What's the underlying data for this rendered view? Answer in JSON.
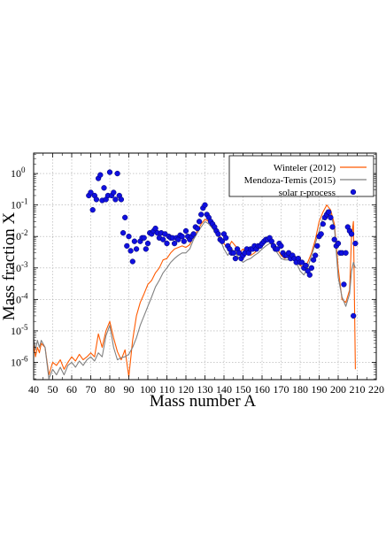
{
  "chart_data": {
    "type": "line",
    "title": "",
    "xlabel": "Mass number A",
    "ylabel": "Mass fraction X",
    "xlim": [
      40,
      220
    ],
    "ylim_log10": [
      -6.55,
      0.65
    ],
    "y_scale": "log",
    "grid": true,
    "legend_position": "top-right",
    "x_ticks": [
      40,
      50,
      60,
      70,
      80,
      90,
      100,
      110,
      120,
      130,
      140,
      150,
      160,
      170,
      180,
      190,
      200,
      210,
      220
    ],
    "y_ticks": [
      {
        "base": "10",
        "exp": "0",
        "value": 1
      },
      {
        "base": "10",
        "exp": "-1",
        "value": 0.1
      },
      {
        "base": "10",
        "exp": "-2",
        "value": 0.01
      },
      {
        "base": "10",
        "exp": "-3",
        "value": 0.001
      },
      {
        "base": "10",
        "exp": "-4",
        "value": 0.0001
      },
      {
        "base": "10",
        "exp": "-5",
        "value": 1e-05
      },
      {
        "base": "10",
        "exp": "-6",
        "value": 1e-06
      }
    ],
    "series": [
      {
        "name": "Winteler (2012)",
        "style": "line",
        "color": "#ff5a00",
        "x": [
          40,
          41,
          42,
          43,
          44,
          46,
          48,
          50,
          52,
          54,
          56,
          58,
          60,
          62,
          64,
          66,
          68,
          70,
          72,
          74,
          76,
          78,
          80,
          82,
          84,
          86,
          88,
          90,
          92,
          94,
          96,
          98,
          100,
          102,
          104,
          106,
          108,
          110,
          112,
          114,
          116,
          118,
          120,
          122,
          124,
          126,
          128,
          130,
          132,
          134,
          136,
          138,
          140,
          142,
          144,
          146,
          148,
          150,
          152,
          154,
          156,
          158,
          160,
          162,
          164,
          166,
          168,
          170,
          172,
          174,
          176,
          178,
          180,
          182,
          184,
          186,
          188,
          190,
          192,
          194,
          196,
          198,
          200,
          202,
          204,
          206,
          207,
          208,
          209
        ],
        "values": [
          4e-06,
          1.5e-06,
          3e-06,
          2e-06,
          4e-06,
          3e-06,
          4e-07,
          1e-06,
          8e-07,
          1.2e-06,
          6e-07,
          1e-06,
          1.5e-06,
          1.1e-06,
          1.8e-06,
          1.2e-06,
          1.5e-06,
          2e-06,
          1.5e-06,
          8e-06,
          3e-06,
          1e-05,
          2e-05,
          6e-06,
          2.2e-06,
          1.2e-06,
          2.5e-06,
          3.5e-07,
          5e-06,
          3e-05,
          8e-05,
          0.00015,
          0.0003,
          0.0004,
          0.0007,
          0.001,
          0.0018,
          0.002,
          0.003,
          0.004,
          0.0045,
          0.005,
          0.0045,
          0.0055,
          0.01,
          0.015,
          0.025,
          0.035,
          0.03,
          0.022,
          0.015,
          0.01,
          0.006,
          0.004,
          0.007,
          0.005,
          0.003,
          0.004,
          0.003,
          0.0025,
          0.003,
          0.004,
          0.005,
          0.007,
          0.008,
          0.006,
          0.004,
          0.0025,
          0.002,
          0.0025,
          0.003,
          0.002,
          0.0012,
          0.001,
          0.0015,
          0.003,
          0.008,
          0.03,
          0.06,
          0.1,
          0.07,
          0.025,
          0.001,
          0.0001,
          8e-05,
          0.0002,
          0.01,
          0.03,
          6e-07
        ]
      },
      {
        "name": "Mendoza-Temis (2015)",
        "style": "line",
        "color": "#808080",
        "x": [
          40,
          41,
          42,
          43,
          44,
          46,
          48,
          50,
          52,
          54,
          56,
          58,
          60,
          62,
          64,
          66,
          68,
          70,
          72,
          74,
          76,
          78,
          80,
          82,
          84,
          86,
          88,
          90,
          92,
          94,
          96,
          98,
          100,
          102,
          104,
          106,
          108,
          110,
          112,
          114,
          116,
          118,
          120,
          122,
          124,
          126,
          128,
          130,
          132,
          134,
          136,
          138,
          140,
          142,
          144,
          146,
          148,
          150,
          152,
          154,
          156,
          158,
          160,
          162,
          164,
          166,
          168,
          170,
          172,
          174,
          176,
          178,
          180,
          182,
          184,
          186,
          188,
          190,
          192,
          194,
          196,
          198,
          200,
          202,
          204,
          206,
          207,
          208,
          209
        ],
        "values": [
          6e-06,
          2.5e-06,
          5e-06,
          3e-06,
          5e-06,
          3e-06,
          3e-07,
          6e-07,
          4e-07,
          7e-07,
          4e-07,
          8e-07,
          1e-06,
          7e-07,
          1.1e-06,
          8e-07,
          1.2e-06,
          1.5e-06,
          1.1e-06,
          2e-06,
          1.5e-06,
          7e-06,
          1.5e-05,
          3e-06,
          1.2e-06,
          1.4e-06,
          1.5e-06,
          1.8e-06,
          3e-06,
          6e-06,
          1.5e-05,
          3e-05,
          6e-05,
          0.00012,
          0.00025,
          0.0004,
          0.0007,
          0.001,
          0.0015,
          0.002,
          0.0025,
          0.003,
          0.003,
          0.004,
          0.008,
          0.013,
          0.02,
          0.03,
          0.025,
          0.018,
          0.012,
          0.008,
          0.004,
          0.0025,
          0.004,
          0.003,
          0.002,
          0.0015,
          0.0018,
          0.002,
          0.0025,
          0.003,
          0.004,
          0.005,
          0.006,
          0.005,
          0.003,
          0.002,
          0.0018,
          0.0018,
          0.002,
          0.0015,
          0.0008,
          0.0006,
          0.001,
          0.0025,
          0.006,
          0.015,
          0.04,
          0.07,
          0.05,
          0.02,
          0.0005,
          0.00012,
          6e-05,
          0.00015,
          0.0008,
          0.0015,
          0.001
        ]
      },
      {
        "name": "solar r-process",
        "style": "points",
        "color": "#1010e0",
        "x": [
          69,
          70,
          71,
          72,
          73,
          74,
          75,
          76,
          77,
          78,
          79,
          80,
          81,
          82,
          83,
          84,
          85,
          86,
          87,
          88,
          89,
          90,
          91,
          92,
          93,
          94,
          96,
          97,
          98,
          99,
          100,
          101,
          102,
          103,
          104,
          105,
          106,
          107,
          108,
          109,
          110,
          111,
          112,
          113,
          114,
          115,
          116,
          117,
          118,
          119,
          120,
          121,
          122,
          123,
          124,
          125,
          126,
          127,
          128,
          129,
          130,
          131,
          132,
          133,
          134,
          135,
          136,
          137,
          138,
          139,
          140,
          141,
          142,
          143,
          144,
          145,
          146,
          147,
          148,
          149,
          150,
          151,
          152,
          153,
          154,
          155,
          156,
          157,
          158,
          159,
          160,
          161,
          162,
          163,
          164,
          165,
          166,
          167,
          168,
          169,
          170,
          171,
          172,
          173,
          174,
          175,
          176,
          177,
          178,
          179,
          180,
          181,
          182,
          183,
          184,
          185,
          186,
          187,
          188,
          189,
          190,
          191,
          192,
          193,
          194,
          195,
          196,
          197,
          198,
          199,
          200,
          201,
          202,
          203,
          204,
          205,
          206,
          207,
          208,
          209
        ],
        "values": [
          0.2,
          0.25,
          0.07,
          0.2,
          0.15,
          0.7,
          0.9,
          0.14,
          0.35,
          0.15,
          0.2,
          1.1,
          0.2,
          0.25,
          0.15,
          1.0,
          0.2,
          0.15,
          0.013,
          0.04,
          0.005,
          0.01,
          0.0035,
          0.0016,
          0.007,
          0.004,
          0.007,
          0.009,
          0.009,
          0.004,
          0.006,
          0.013,
          0.012,
          0.015,
          0.018,
          0.013,
          0.009,
          0.013,
          0.008,
          0.012,
          0.006,
          0.01,
          0.009,
          0.009,
          0.006,
          0.009,
          0.008,
          0.011,
          0.01,
          0.007,
          0.015,
          0.01,
          0.008,
          0.01,
          0.012,
          0.02,
          0.018,
          0.03,
          0.05,
          0.08,
          0.1,
          0.05,
          0.04,
          0.03,
          0.025,
          0.02,
          0.015,
          0.012,
          0.008,
          0.007,
          0.012,
          0.009,
          0.005,
          0.004,
          0.003,
          0.003,
          0.002,
          0.004,
          0.003,
          0.002,
          0.0025,
          0.003,
          0.004,
          0.003,
          0.004,
          0.004,
          0.005,
          0.004,
          0.005,
          0.005,
          0.006,
          0.007,
          0.008,
          0.008,
          0.009,
          0.007,
          0.005,
          0.004,
          0.004,
          0.006,
          0.005,
          0.003,
          0.0025,
          0.0025,
          0.003,
          0.002,
          0.0025,
          0.002,
          0.0015,
          0.002,
          0.0015,
          0.0015,
          0.001,
          0.0012,
          0.0008,
          0.0006,
          0.001,
          0.0018,
          0.0025,
          0.005,
          0.01,
          0.012,
          0.025,
          0.04,
          0.05,
          0.06,
          0.04,
          0.02,
          0.008,
          0.005,
          0.006,
          0.003,
          0.003,
          0.0003,
          0.003,
          0.02,
          0.015,
          0.012,
          3e-05,
          0.006
        ]
      }
    ]
  }
}
